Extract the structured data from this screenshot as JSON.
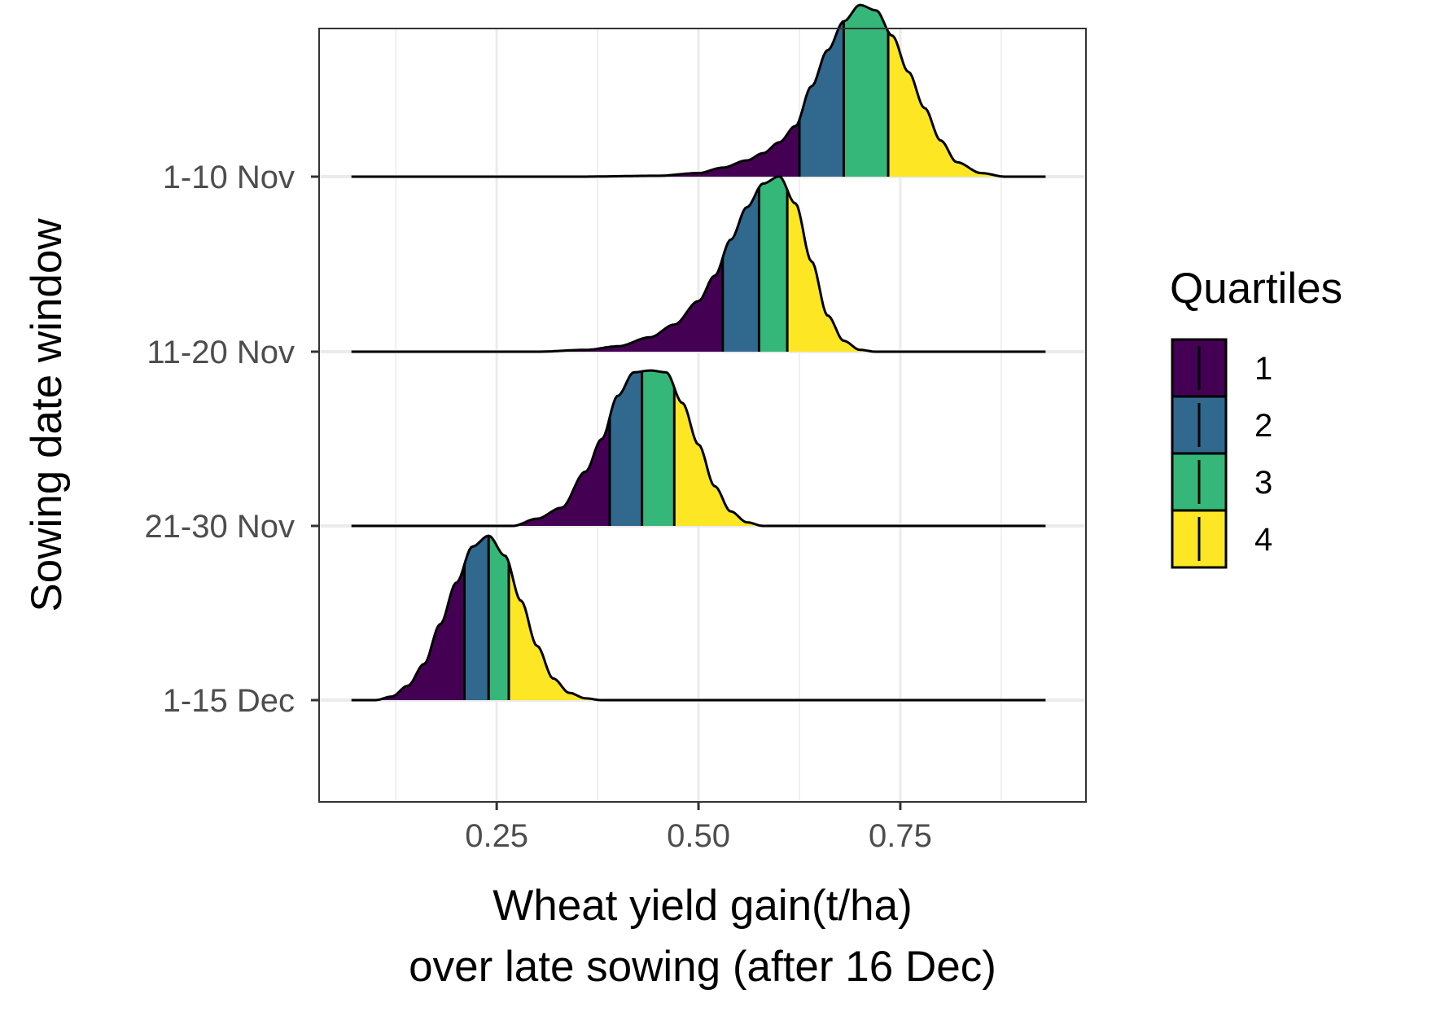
{
  "chart_data": {
    "type": "ridgeline",
    "xlabel_line1": "Wheat yield gain(t/ha)",
    "xlabel_line2": "over late sowing (after 16 Dec)",
    "ylabel": "Sowing date window",
    "xlim": [
      0.03,
      0.98
    ],
    "x_ticks": [
      0.25,
      0.5,
      0.75
    ],
    "x_tick_labels": [
      "0.25",
      "0.50",
      "0.75"
    ],
    "grid": true,
    "legend": {
      "title": "Quartiles",
      "position": "right",
      "entries": [
        {
          "label": "1",
          "color": "#440154"
        },
        {
          "label": "2",
          "color": "#31688E"
        },
        {
          "label": "3",
          "color": "#35B779"
        },
        {
          "label": "4",
          "color": "#FDE725"
        }
      ]
    },
    "series": [
      {
        "name": "1-10 Nov",
        "quartile_cuts": [
          0.625,
          0.68,
          0.735
        ],
        "x_range": [
          0.07,
          0.93
        ],
        "density": [
          [
            0.07,
            0
          ],
          [
            0.35,
            0
          ],
          [
            0.45,
            0.005
          ],
          [
            0.5,
            0.02
          ],
          [
            0.53,
            0.05
          ],
          [
            0.56,
            0.09
          ],
          [
            0.58,
            0.13
          ],
          [
            0.6,
            0.19
          ],
          [
            0.62,
            0.28
          ],
          [
            0.64,
            0.5
          ],
          [
            0.66,
            0.7
          ],
          [
            0.68,
            0.86
          ],
          [
            0.7,
            0.95
          ],
          [
            0.72,
            0.92
          ],
          [
            0.74,
            0.78
          ],
          [
            0.76,
            0.58
          ],
          [
            0.78,
            0.38
          ],
          [
            0.8,
            0.2
          ],
          [
            0.82,
            0.08
          ],
          [
            0.85,
            0.02
          ],
          [
            0.88,
            0
          ],
          [
            0.93,
            0
          ]
        ]
      },
      {
        "name": "11-20 Nov",
        "quartile_cuts": [
          0.53,
          0.575,
          0.61
        ],
        "x_range": [
          0.07,
          0.93
        ],
        "density": [
          [
            0.07,
            0
          ],
          [
            0.3,
            0
          ],
          [
            0.36,
            0.01
          ],
          [
            0.4,
            0.03
          ],
          [
            0.44,
            0.08
          ],
          [
            0.47,
            0.15
          ],
          [
            0.5,
            0.28
          ],
          [
            0.52,
            0.42
          ],
          [
            0.54,
            0.62
          ],
          [
            0.56,
            0.8
          ],
          [
            0.58,
            0.93
          ],
          [
            0.6,
            0.97
          ],
          [
            0.62,
            0.82
          ],
          [
            0.64,
            0.5
          ],
          [
            0.66,
            0.2
          ],
          [
            0.68,
            0.06
          ],
          [
            0.7,
            0.01
          ],
          [
            0.72,
            0
          ],
          [
            0.93,
            0
          ]
        ]
      },
      {
        "name": "21-30 Nov",
        "quartile_cuts": [
          0.39,
          0.43,
          0.47
        ],
        "x_range": [
          0.07,
          0.93
        ],
        "density": [
          [
            0.07,
            0
          ],
          [
            0.27,
            0
          ],
          [
            0.3,
            0.04
          ],
          [
            0.33,
            0.1
          ],
          [
            0.36,
            0.3
          ],
          [
            0.38,
            0.48
          ],
          [
            0.4,
            0.72
          ],
          [
            0.42,
            0.85
          ],
          [
            0.44,
            0.86
          ],
          [
            0.46,
            0.85
          ],
          [
            0.48,
            0.68
          ],
          [
            0.5,
            0.45
          ],
          [
            0.52,
            0.22
          ],
          [
            0.54,
            0.08
          ],
          [
            0.56,
            0.02
          ],
          [
            0.58,
            0
          ],
          [
            0.93,
            0
          ]
        ]
      },
      {
        "name": "1-15 Dec",
        "quartile_cuts": [
          0.21,
          0.24,
          0.265
        ],
        "x_range": [
          0.07,
          0.93
        ],
        "density": [
          [
            0.07,
            0
          ],
          [
            0.1,
            0
          ],
          [
            0.12,
            0.02
          ],
          [
            0.14,
            0.08
          ],
          [
            0.16,
            0.2
          ],
          [
            0.18,
            0.42
          ],
          [
            0.2,
            0.65
          ],
          [
            0.22,
            0.85
          ],
          [
            0.24,
            0.91
          ],
          [
            0.26,
            0.8
          ],
          [
            0.28,
            0.55
          ],
          [
            0.3,
            0.3
          ],
          [
            0.32,
            0.12
          ],
          [
            0.34,
            0.04
          ],
          [
            0.36,
            0.01
          ],
          [
            0.38,
            0
          ],
          [
            0.93,
            0
          ]
        ]
      }
    ]
  }
}
